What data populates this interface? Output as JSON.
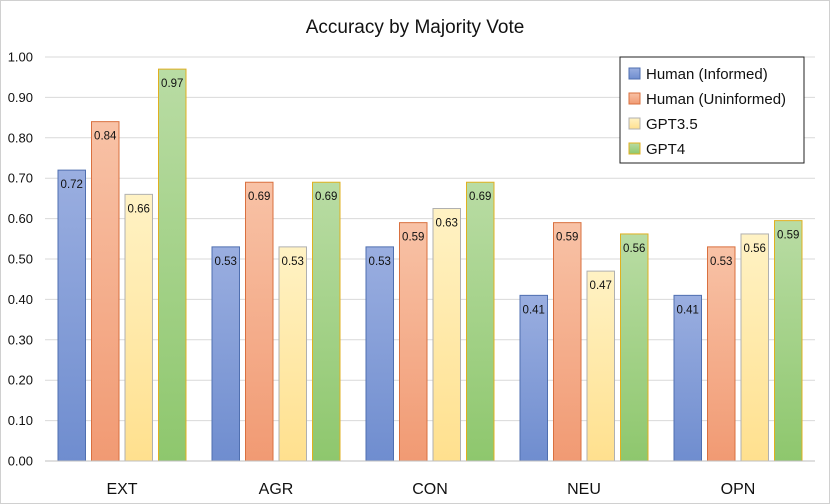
{
  "chart_data": {
    "type": "bar",
    "title": "Accuracy by Majority Vote",
    "xlabel": "",
    "ylabel": "",
    "ylim": [
      0,
      1.0
    ],
    "yticks": [
      "0.00",
      "0.10",
      "0.20",
      "0.30",
      "0.40",
      "0.50",
      "0.60",
      "0.70",
      "0.80",
      "0.90",
      "1.00"
    ],
    "grid": true,
    "legend_position": "top-right",
    "categories": [
      "EXT",
      "AGR",
      "CON",
      "NEU",
      "OPN"
    ],
    "series": [
      {
        "name": "Human (Informed)",
        "values": [
          0.72,
          0.53,
          0.53,
          0.41,
          0.41
        ],
        "labels": [
          "0.72",
          "0.53",
          "0.53",
          "0.41",
          "0.41"
        ],
        "color_top": "#9aaee0",
        "color_bottom": "#6f8dcf",
        "stroke": "#4f6fb0"
      },
      {
        "name": "Human (Uninformed)",
        "values": [
          0.84,
          0.69,
          0.59,
          0.59,
          0.53
        ],
        "labels": [
          "0.84",
          "0.69",
          "0.59",
          "0.59",
          "0.53"
        ],
        "color_top": "#f8c2a6",
        "color_bottom": "#f19a73",
        "stroke": "#d9703f"
      },
      {
        "name": "GPT3.5",
        "values": [
          0.66,
          0.53,
          0.625,
          0.47,
          0.562
        ],
        "labels": [
          "0.66",
          "0.53",
          "0.63",
          "0.47",
          "0.56"
        ],
        "color_top": "#fff2c4",
        "color_bottom": "#ffe08e",
        "stroke": "#b0b0b0"
      },
      {
        "name": "GPT4",
        "values": [
          0.97,
          0.69,
          0.69,
          0.562,
          0.595
        ],
        "labels": [
          "0.97",
          "0.69",
          "0.69",
          "0.56",
          "0.59"
        ],
        "color_top": "#b9dca4",
        "color_bottom": "#8ec76d",
        "stroke": "#e0b020"
      }
    ]
  }
}
